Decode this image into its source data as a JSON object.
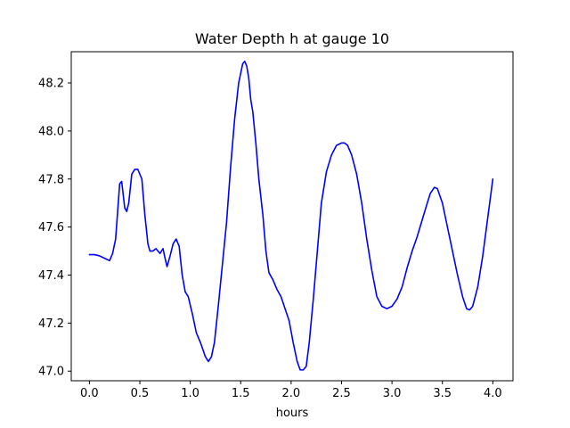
{
  "chart_data": {
    "type": "line",
    "title": "Water Depth h at gauge 10",
    "xlabel": "hours",
    "ylabel": "",
    "xlim": [
      -0.18,
      4.2
    ],
    "ylim": [
      46.96,
      48.33
    ],
    "xticks": [
      0.0,
      0.5,
      1.0,
      1.5,
      2.0,
      2.5,
      3.0,
      3.5,
      4.0
    ],
    "xtick_labels": [
      "0.0",
      "0.5",
      "1.0",
      "1.5",
      "2.0",
      "2.5",
      "3.0",
      "3.5",
      "4.0"
    ],
    "yticks": [
      47.0,
      47.2,
      47.4,
      47.6,
      47.8,
      48.0,
      48.2
    ],
    "ytick_labels": [
      "47.0",
      "47.2",
      "47.4",
      "47.6",
      "47.8",
      "48.0",
      "48.2"
    ],
    "grid": false,
    "legend": "none",
    "series": [
      {
        "color": "#0000ff",
        "x": [
          0.0,
          0.05,
          0.1,
          0.15,
          0.2,
          0.23,
          0.26,
          0.3,
          0.32,
          0.35,
          0.37,
          0.39,
          0.42,
          0.45,
          0.48,
          0.52,
          0.55,
          0.58,
          0.6,
          0.63,
          0.66,
          0.7,
          0.73,
          0.75,
          0.77,
          0.8,
          0.83,
          0.86,
          0.89,
          0.92,
          0.95,
          0.98,
          1.02,
          1.06,
          1.1,
          1.15,
          1.18,
          1.21,
          1.24,
          1.28,
          1.32,
          1.36,
          1.4,
          1.44,
          1.48,
          1.52,
          1.54,
          1.56,
          1.58,
          1.6,
          1.62,
          1.65,
          1.68,
          1.72,
          1.75,
          1.78,
          1.82,
          1.86,
          1.9,
          1.94,
          1.98,
          2.02,
          2.06,
          2.09,
          2.12,
          2.15,
          2.18,
          2.22,
          2.26,
          2.3,
          2.35,
          2.4,
          2.45,
          2.5,
          2.53,
          2.56,
          2.6,
          2.65,
          2.7,
          2.75,
          2.8,
          2.85,
          2.9,
          2.95,
          3.0,
          3.05,
          3.1,
          3.15,
          3.2,
          3.25,
          3.3,
          3.35,
          3.38,
          3.42,
          3.45,
          3.5,
          3.55,
          3.6,
          3.65,
          3.7,
          3.74,
          3.77,
          3.8,
          3.85,
          3.9,
          3.95,
          4.0
        ],
        "y": [
          47.485,
          47.485,
          47.48,
          47.47,
          47.46,
          47.49,
          47.55,
          47.78,
          47.79,
          47.68,
          47.665,
          47.7,
          47.82,
          47.84,
          47.84,
          47.8,
          47.65,
          47.53,
          47.5,
          47.5,
          47.51,
          47.49,
          47.51,
          47.47,
          47.435,
          47.48,
          47.53,
          47.55,
          47.52,
          47.4,
          47.33,
          47.31,
          47.24,
          47.16,
          47.12,
          47.06,
          47.04,
          47.06,
          47.12,
          47.28,
          47.45,
          47.62,
          47.85,
          48.05,
          48.2,
          48.28,
          48.29,
          48.27,
          48.22,
          48.13,
          48.08,
          47.95,
          47.8,
          47.65,
          47.5,
          47.41,
          47.38,
          47.34,
          47.31,
          47.26,
          47.21,
          47.12,
          47.04,
          47.005,
          47.005,
          47.02,
          47.12,
          47.3,
          47.5,
          47.7,
          47.83,
          47.9,
          47.94,
          47.95,
          47.95,
          47.94,
          47.9,
          47.82,
          47.7,
          47.55,
          47.42,
          47.31,
          47.27,
          47.26,
          47.27,
          47.3,
          47.35,
          47.43,
          47.5,
          47.56,
          47.63,
          47.7,
          47.74,
          47.765,
          47.76,
          47.7,
          47.6,
          47.5,
          47.4,
          47.31,
          47.26,
          47.255,
          47.27,
          47.35,
          47.48,
          47.64,
          47.8
        ]
      }
    ]
  }
}
